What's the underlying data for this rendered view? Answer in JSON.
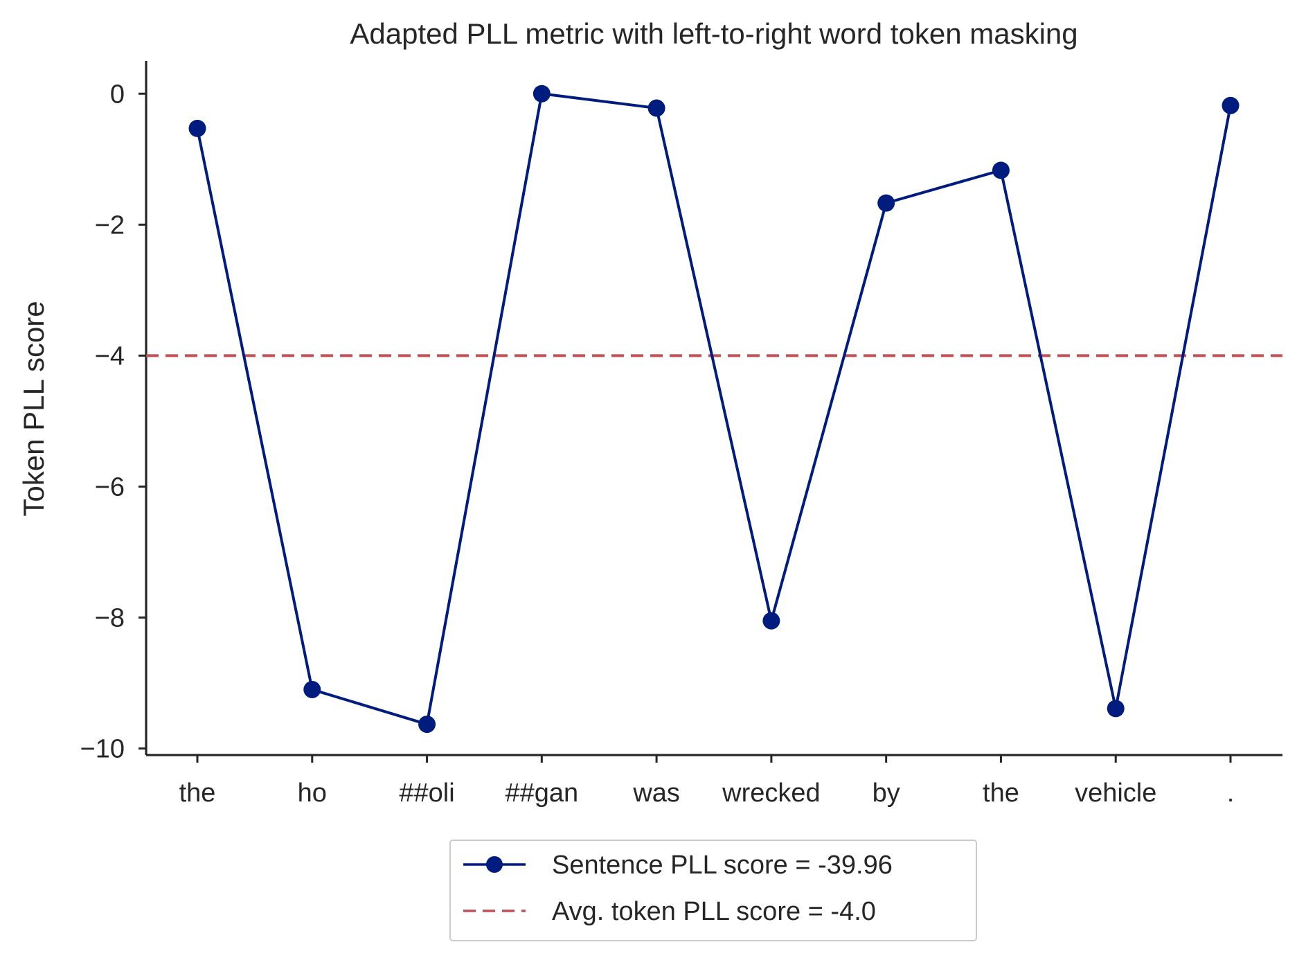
{
  "chart_data": {
    "type": "line",
    "title": "Adapted PLL metric with left-to-right word token masking",
    "xlabel": "",
    "ylabel": "Token PLL score",
    "categories": [
      "the",
      "ho",
      "##oli",
      "##gan",
      "was",
      "wrecked",
      "by",
      "the",
      "vehicle",
      "."
    ],
    "series": [
      {
        "name": "Sentence PLL score = -39.96",
        "values": [
          -0.53,
          -9.1,
          -9.63,
          0.0,
          -0.22,
          -8.05,
          -1.67,
          -1.17,
          -9.39,
          -0.18
        ],
        "color": "#001c7f",
        "marker": "circle",
        "line_style": "solid"
      }
    ],
    "reference_lines": [
      {
        "name": "Avg. token PLL score = -4.0",
        "y": -4.0,
        "color": "#c44e52",
        "line_style": "dashed"
      }
    ],
    "ylim": [
      -10.1,
      0.5
    ],
    "yticks": [
      0,
      -2,
      -4,
      -6,
      -8,
      -10
    ],
    "ytick_labels": [
      "0",
      "−2",
      "−4",
      "−6",
      "−8",
      "−10"
    ],
    "grid": false,
    "legend_position": "bottom-center"
  }
}
